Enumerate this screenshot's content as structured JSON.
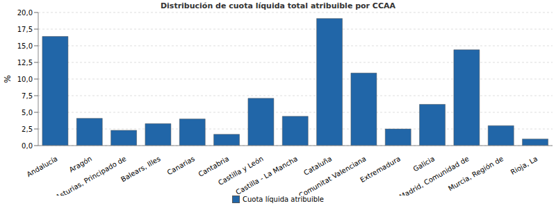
{
  "chart_data": {
    "type": "bar",
    "title": "Distribución de cuota líquida total atribuible por CCAA",
    "y_label": "%",
    "categories": [
      "Andalucía",
      "Aragón",
      "Asturias, Principado de",
      "Balears, Illes",
      "Canarias",
      "Cantabria",
      "Castilla y León",
      "Castilla - La Mancha",
      "Cataluña",
      "Comunitat Valenciana",
      "Extremadura",
      "Galicia",
      "Madrid, Comunidad de",
      "Murcia, Región de",
      "Rioja, La"
    ],
    "series": [
      {
        "name": "Cuota líquida atribuible",
        "color": "#2166a8",
        "values": [
          16.4,
          4.1,
          2.3,
          3.3,
          4.0,
          1.7,
          7.1,
          4.4,
          19.1,
          10.9,
          2.5,
          6.2,
          14.4,
          3.0,
          1.0
        ]
      }
    ],
    "ylim": [
      0,
      20
    ],
    "yticks": [
      {
        "value": 0,
        "label": "0,0"
      },
      {
        "value": 2.5,
        "label": "2,5"
      },
      {
        "value": 5,
        "label": "5,0"
      },
      {
        "value": 7.5,
        "label": "7,5"
      },
      {
        "value": 10,
        "label": "10,0"
      },
      {
        "value": 12.5,
        "label": "12,5"
      },
      {
        "value": 15,
        "label": "15,0"
      },
      {
        "value": 17.5,
        "label": "17,5"
      },
      {
        "value": 20,
        "label": "20,0"
      }
    ],
    "grid": true,
    "legend": "bottom"
  }
}
